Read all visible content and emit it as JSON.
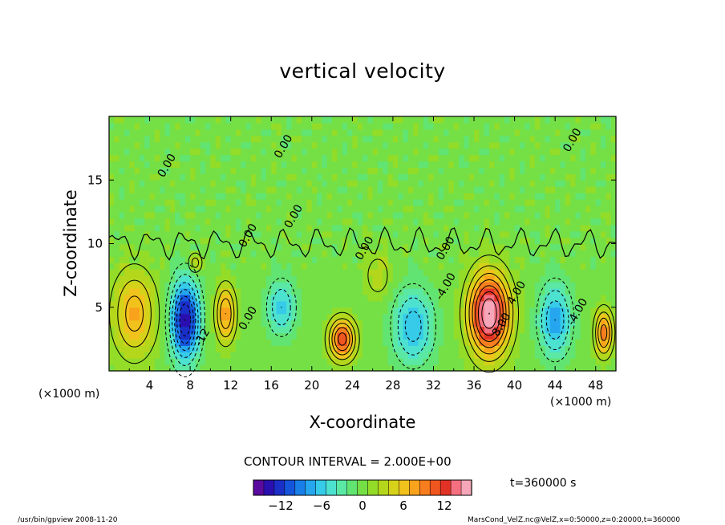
{
  "chart_data": {
    "type": "heatmap",
    "title": "vertical velocity",
    "xlabel": "X-coordinate",
    "ylabel": "Z-coordinate",
    "x_unit_label_left": "(×1000 m)",
    "x_unit_label_right": "(×1000 m)",
    "xlim": [
      0,
      50
    ],
    "ylim": [
      0,
      20
    ],
    "x_ticks": [
      4,
      8,
      12,
      16,
      20,
      24,
      28,
      32,
      36,
      40,
      44,
      48
    ],
    "y_ticks": [
      5,
      10,
      15
    ],
    "contour_interval_text": "CONTOUR INTERVAL = 2.000E+00",
    "contour_labels": [
      {
        "text": "0.00",
        "x": 6.0,
        "y": 16.0
      },
      {
        "text": "0.00",
        "x": 17.5,
        "y": 17.5
      },
      {
        "text": "0.00",
        "x": 46.0,
        "y": 18.0
      },
      {
        "text": "0.00",
        "x": 14.0,
        "y": 10.5
      },
      {
        "text": "0.00",
        "x": 18.5,
        "y": 12.0
      },
      {
        "text": "0.00",
        "x": 25.5,
        "y": 9.5
      },
      {
        "text": "0.00",
        "x": 14.0,
        "y": 4.0
      },
      {
        "text": "-4.00",
        "x": 33.5,
        "y": 6.5
      },
      {
        "text": "4.00",
        "x": 40.5,
        "y": 6.0
      },
      {
        "text": "8.00",
        "x": 39.0,
        "y": 3.5
      },
      {
        "text": "-4.00",
        "x": 46.5,
        "y": 4.5
      },
      {
        "text": "0.00",
        "x": 33.5,
        "y": 9.5
      },
      {
        "text": "-12",
        "x": 9.5,
        "y": 2.5
      }
    ],
    "features": [
      {
        "x": 2.5,
        "z": 4.5,
        "value": 7,
        "sx": 2.2,
        "sz": 3.5
      },
      {
        "x": 7.5,
        "z": 4.0,
        "value": -14,
        "sx": 1.4,
        "sz": 3.2
      },
      {
        "x": 8.5,
        "z": 8.5,
        "value": 5,
        "sx": 0.7,
        "sz": 0.8
      },
      {
        "x": 11.5,
        "z": 4.5,
        "value": 8,
        "sx": 1.0,
        "sz": 2.2
      },
      {
        "x": 17.0,
        "z": 5.0,
        "value": -6,
        "sx": 1.4,
        "sz": 2.2
      },
      {
        "x": 23.0,
        "z": 2.5,
        "value": 11,
        "sx": 1.3,
        "sz": 1.6
      },
      {
        "x": 30.0,
        "z": 3.5,
        "value": -7,
        "sx": 2.0,
        "sz": 3.0
      },
      {
        "x": 37.5,
        "z": 4.5,
        "value": 16,
        "sx": 2.0,
        "sz": 3.2
      },
      {
        "x": 44.0,
        "z": 4.0,
        "value": -8,
        "sx": 1.6,
        "sz": 2.8
      },
      {
        "x": 48.8,
        "z": 3.0,
        "value": 9,
        "sx": 0.9,
        "sz": 1.8
      },
      {
        "x": 26.5,
        "z": 7.5,
        "value": 3,
        "sx": 1.5,
        "sz": 2.0
      }
    ],
    "colorbar": {
      "min": -16,
      "max": 16,
      "ticks": [
        -12,
        -6,
        0,
        6,
        12
      ],
      "colors": [
        "#5a0a9e",
        "#2a0fb0",
        "#1a2ec8",
        "#1455dc",
        "#1a7ee8",
        "#25a6ee",
        "#36cbe8",
        "#4de2d0",
        "#5be8a4",
        "#62e472",
        "#74e046",
        "#93dc28",
        "#b4d71c",
        "#d6d21a",
        "#f2c21c",
        "#f9a21c",
        "#f77d1e",
        "#f0561f",
        "#e23226",
        "#f47080",
        "#f5a6b8"
      ]
    },
    "time_label": "t=360000 s"
  },
  "footer": {
    "left": "/usr/bin/gpview  2008-11-20",
    "right": "MarsCond_VelZ.nc@VelZ,x=0:50000,z=0:20000,t=360000"
  }
}
